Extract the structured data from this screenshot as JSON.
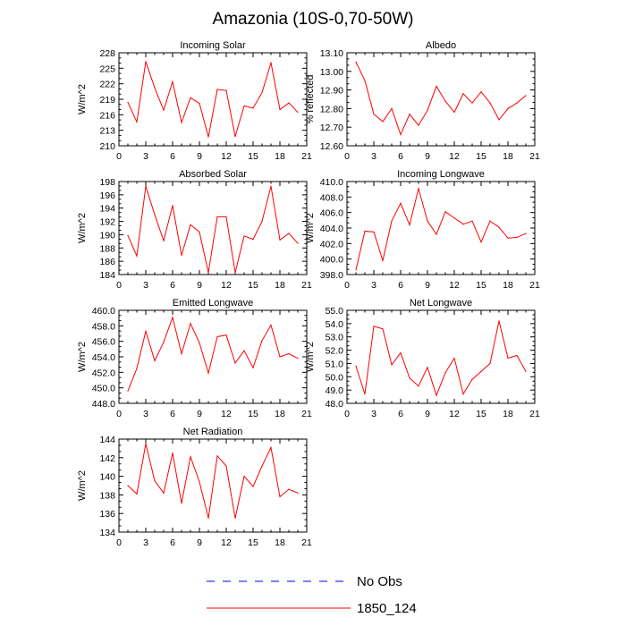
{
  "title": "Amazonia (10S-0,70-50W)",
  "legend": [
    {
      "label": "No Obs",
      "color": "#0000ff",
      "dashed": true
    },
    {
      "label": "1850_124",
      "color": "#ff0000",
      "dashed": false
    }
  ],
  "chart_data": [
    {
      "type": "line",
      "title": "Incoming Solar",
      "ylabel": "W/m^2",
      "xlim": [
        0,
        21
      ],
      "ylim": [
        210,
        228
      ],
      "xticks": [
        "0",
        "3",
        "6",
        "9",
        "12",
        "15",
        "18",
        "21"
      ],
      "yticks": [
        "210",
        "213",
        "216",
        "219",
        "222",
        "225",
        "228"
      ],
      "series": [
        {
          "color": "#ff0000",
          "x": [
            1,
            2,
            3,
            4,
            5,
            6,
            7,
            8,
            9,
            10,
            11,
            12,
            13,
            14,
            15,
            16,
            17,
            18,
            19,
            20
          ],
          "values": [
            218.4,
            214.6,
            226.3,
            221.2,
            216.9,
            222.4,
            214.5,
            219.3,
            218.2,
            211.7,
            220.9,
            220.7,
            211.8,
            217.7,
            217.3,
            220.3,
            226.1,
            217.0,
            218.3,
            216.5
          ]
        }
      ]
    },
    {
      "type": "line",
      "title": "Albedo",
      "ylabel": "% reflected",
      "xlim": [
        0,
        21
      ],
      "ylim": [
        12.6,
        13.1
      ],
      "xticks": [
        "0",
        "3",
        "6",
        "9",
        "12",
        "15",
        "18",
        "21"
      ],
      "yticks": [
        "12.60",
        "12.70",
        "12.80",
        "12.90",
        "13.00",
        "13.10"
      ],
      "series": [
        {
          "color": "#ff0000",
          "x": [
            1,
            2,
            3,
            4,
            5,
            6,
            7,
            8,
            9,
            10,
            11,
            12,
            13,
            14,
            15,
            16,
            17,
            18,
            19,
            20
          ],
          "values": [
            13.05,
            12.95,
            12.77,
            12.73,
            12.8,
            12.66,
            12.77,
            12.71,
            12.79,
            12.92,
            12.84,
            12.78,
            12.88,
            12.83,
            12.89,
            12.83,
            12.74,
            12.8,
            12.83,
            12.87
          ]
        }
      ]
    },
    {
      "type": "line",
      "title": "Absorbed Solar",
      "ylabel": "W/m^2",
      "xlim": [
        0,
        21
      ],
      "ylim": [
        184,
        198
      ],
      "xticks": [
        "0",
        "3",
        "6",
        "9",
        "12",
        "15",
        "18",
        "21"
      ],
      "yticks": [
        "184",
        "186",
        "188",
        "190",
        "192",
        "194",
        "196",
        "198"
      ],
      "series": [
        {
          "color": "#ff0000",
          "x": [
            1,
            2,
            3,
            4,
            5,
            6,
            7,
            8,
            9,
            10,
            11,
            12,
            13,
            14,
            15,
            16,
            17,
            18,
            19,
            20
          ],
          "values": [
            189.9,
            186.8,
            197.3,
            193.0,
            189.1,
            194.4,
            186.9,
            191.5,
            190.4,
            184.3,
            192.7,
            192.7,
            184.3,
            189.8,
            189.3,
            192.0,
            197.3,
            189.2,
            190.2,
            188.7
          ]
        }
      ]
    },
    {
      "type": "line",
      "title": "Incoming Longwave",
      "ylabel": "W/m^2",
      "xlim": [
        0,
        21
      ],
      "ylim": [
        398,
        410
      ],
      "xticks": [
        "0",
        "3",
        "6",
        "9",
        "12",
        "15",
        "18",
        "21"
      ],
      "yticks": [
        "398.0",
        "400.0",
        "402.0",
        "404.0",
        "406.0",
        "408.0",
        "410.0"
      ],
      "series": [
        {
          "color": "#ff0000",
          "x": [
            1,
            2,
            3,
            4,
            5,
            6,
            7,
            8,
            9,
            10,
            11,
            12,
            13,
            14,
            15,
            16,
            17,
            18,
            19,
            20
          ],
          "values": [
            398.6,
            403.6,
            403.5,
            399.8,
            404.9,
            407.2,
            404.4,
            409.1,
            404.9,
            403.2,
            406.1,
            405.3,
            404.5,
            404.9,
            402.2,
            404.9,
            404.1,
            402.7,
            402.8,
            403.3
          ]
        }
      ]
    },
    {
      "type": "line",
      "title": "Emitted Longwave",
      "ylabel": "W/m^2",
      "xlim": [
        0,
        21
      ],
      "ylim": [
        448,
        460
      ],
      "xticks": [
        "0",
        "3",
        "6",
        "9",
        "12",
        "15",
        "18",
        "21"
      ],
      "yticks": [
        "448.0",
        "450.0",
        "452.0",
        "454.0",
        "456.0",
        "458.0",
        "460.0"
      ],
      "series": [
        {
          "color": "#ff0000",
          "x": [
            1,
            2,
            3,
            4,
            5,
            6,
            7,
            8,
            9,
            10,
            11,
            12,
            13,
            14,
            15,
            16,
            17,
            18,
            19,
            20
          ],
          "values": [
            449.6,
            452.5,
            457.3,
            453.5,
            455.9,
            459.1,
            454.4,
            458.3,
            455.8,
            451.9,
            456.6,
            456.8,
            453.2,
            454.8,
            452.6,
            456.1,
            458.1,
            454.0,
            454.4,
            453.8
          ]
        }
      ]
    },
    {
      "type": "line",
      "title": "Net Longwave",
      "ylabel": "W/m^2",
      "xlim": [
        0,
        21
      ],
      "ylim": [
        48,
        55
      ],
      "xticks": [
        "0",
        "3",
        "6",
        "9",
        "12",
        "15",
        "18",
        "21"
      ],
      "yticks": [
        "48.0",
        "49.0",
        "50.0",
        "51.0",
        "52.0",
        "53.0",
        "54.0",
        "55.0"
      ],
      "series": [
        {
          "color": "#ff0000",
          "x": [
            1,
            2,
            3,
            4,
            5,
            6,
            7,
            8,
            9,
            10,
            11,
            12,
            13,
            14,
            15,
            16,
            17,
            18,
            19,
            20
          ],
          "values": [
            50.8,
            48.7,
            53.8,
            53.6,
            50.9,
            51.8,
            49.9,
            49.3,
            50.7,
            48.6,
            50.3,
            51.4,
            48.7,
            49.8,
            50.4,
            51.0,
            54.2,
            51.4,
            51.6,
            50.4
          ]
        }
      ]
    },
    {
      "type": "line",
      "title": "Net Radiation",
      "ylabel": "W/m^2",
      "xlim": [
        0,
        21
      ],
      "ylim": [
        134,
        144
      ],
      "xticks": [
        "0",
        "3",
        "6",
        "9",
        "12",
        "15",
        "18",
        "21"
      ],
      "yticks": [
        "134",
        "136",
        "138",
        "140",
        "142",
        "144"
      ],
      "series": [
        {
          "color": "#ff0000",
          "x": [
            1,
            2,
            3,
            4,
            5,
            6,
            7,
            8,
            9,
            10,
            11,
            12,
            13,
            14,
            15,
            16,
            17,
            18,
            19,
            20
          ],
          "values": [
            139.0,
            138.1,
            143.5,
            139.5,
            138.2,
            142.5,
            137.1,
            142.1,
            139.4,
            135.5,
            142.2,
            141.1,
            135.5,
            140.0,
            138.9,
            141.1,
            143.1,
            137.8,
            138.6,
            138.2
          ]
        }
      ]
    }
  ]
}
